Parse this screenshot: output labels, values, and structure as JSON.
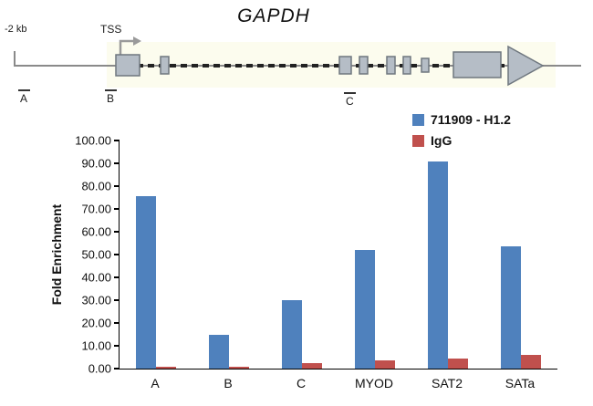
{
  "diagram": {
    "title": "GAPDH",
    "left_label": "-2 kb",
    "tss_label": "TSS",
    "region_labels": [
      "A",
      "B",
      "C"
    ]
  },
  "chart_data": {
    "type": "bar",
    "title": "",
    "ylabel": "Fold Enrichment",
    "xlabel": "",
    "ylim": [
      0,
      100
    ],
    "ytick_labels": [
      "0.00",
      "10.00",
      "20.00",
      "30.00",
      "40.00",
      "50.00",
      "60.00",
      "70.00",
      "80.00",
      "90.00",
      "100.00"
    ],
    "categories": [
      "A",
      "B",
      "C",
      "MYOD",
      "SAT2",
      "SATa"
    ],
    "series": [
      {
        "name": "711909 - H1.2",
        "color": "#4f81bd",
        "values": [
          75.5,
          15.0,
          30.0,
          52.0,
          91.0,
          53.5
        ]
      },
      {
        "name": "IgG",
        "color": "#c0504d",
        "values": [
          1.0,
          1.0,
          2.5,
          3.5,
          4.5,
          6.0
        ]
      }
    ],
    "legend_position": "top-right",
    "grid": false
  }
}
